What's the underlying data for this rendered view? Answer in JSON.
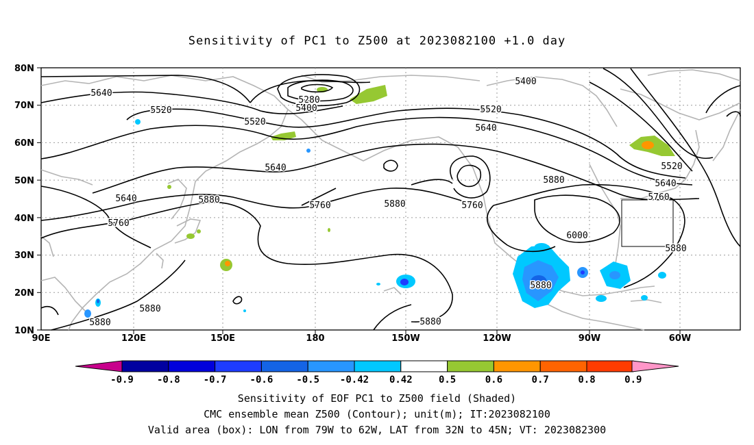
{
  "title": "Sensitivity of PC1 to Z500 at 2023082100 +1.0 day",
  "lat_labels": [
    "80N",
    "70N",
    "60N",
    "50N",
    "40N",
    "30N",
    "20N",
    "10N"
  ],
  "lon_labels": [
    "90E",
    "120E",
    "150E",
    "180",
    "150W",
    "120W",
    "90W",
    "60W"
  ],
  "colorbar": {
    "labels": [
      "-0.9",
      "-0.8",
      "-0.7",
      "-0.6",
      "-0.5",
      "-0.42",
      "0.42",
      "0.5",
      "0.6",
      "0.7",
      "0.8",
      "0.9"
    ],
    "colors": [
      "#c8008c",
      "#0000a0",
      "#0000dc",
      "#1e3cff",
      "#1464e6",
      "#2896ff",
      "#00c8ff",
      "#ffffff",
      "#96c832",
      "#ff9600",
      "#ff6400",
      "#ff3c00",
      "#ff0000",
      "#ff96c8"
    ]
  },
  "contour_labels": [
    "5640",
    "5520",
    "5280",
    "5400",
    "5520",
    "5640",
    "5640",
    "5760",
    "5880",
    "5760",
    "5880",
    "5760",
    "5880",
    "6000",
    "5520",
    "5640",
    "5760",
    "5880",
    "5880",
    "5880",
    "5880",
    "5880",
    "5400",
    "5520",
    "5640"
  ],
  "captions": [
    "Sensitivity of EOF PC1 to Z500 field (Shaded)",
    "CMC ensemble mean Z500 (Contour); unit(m); IT:2023082100",
    "Valid area (box): LON from 79W to 62W, LAT from 32N to 45N; VT: 2023082300"
  ],
  "colors": {
    "coast": "#b4b4b4",
    "contour": "#000000",
    "grid": "#9a9a9a"
  }
}
